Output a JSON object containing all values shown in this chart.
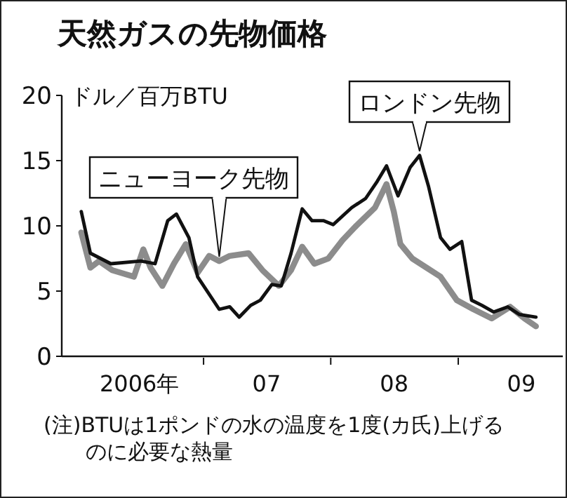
{
  "chart_data": {
    "type": "line",
    "title": "天然ガスの先物価格",
    "ylabel": "ドル／百万BTU",
    "annotations": [
      "(注)BTUは1ポンドの水の温度を1度(カ氏)上げるのに必要な熱量"
    ],
    "xlim": [
      "2005-11-20",
      "2009-10-28"
    ],
    "xticks": [
      {
        "value": "2006-07-01",
        "label": "2006年"
      },
      {
        "value": "2007-01-01",
        "label": null
      },
      {
        "value": "2007-07-01",
        "label": "07"
      },
      {
        "value": "2008-01-01",
        "label": null
      },
      {
        "value": "2008-07-01",
        "label": "08"
      },
      {
        "value": "2009-01-01",
        "label": null
      },
      {
        "value": "2009-07-01",
        "label": "09"
      }
    ],
    "ylim": [
      0,
      20
    ],
    "yticks": [
      0,
      5,
      10,
      15,
      20
    ],
    "grid": false,
    "marker": "none",
    "line_style": "solid",
    "series": [
      {
        "name": "ニューヨーク先物",
        "color": "#8c8c8c",
        "x": [
          "2006-01-15",
          "2006-02-10",
          "2006-03-07",
          "2006-04-14",
          "2006-06-15",
          "2006-07-12",
          "2006-08-02",
          "2006-09-05",
          "2006-10-08",
          "2006-11-11",
          "2006-12-15",
          "2007-01-17",
          "2007-02-15",
          "2007-03-17",
          "2007-05-10",
          "2007-06-19",
          "2007-08-05",
          "2007-09-09",
          "2007-10-11",
          "2007-11-15",
          "2007-12-25",
          "2008-02-04",
          "2008-03-14",
          "2008-05-07",
          "2008-06-09",
          "2008-06-30",
          "2008-07-19",
          "2008-08-22",
          "2008-10-02",
          "2008-11-11",
          "2008-12-28",
          "2009-02-14",
          "2009-04-07",
          "2009-05-30",
          "2009-07-10",
          "2009-08-12"
        ],
        "values": [
          9.5,
          6.8,
          7.3,
          6.6,
          6.1,
          8.2,
          6.8,
          5.4,
          7.1,
          8.6,
          6.4,
          7.7,
          7.3,
          7.7,
          7.9,
          6.6,
          5.4,
          6.6,
          8.4,
          7.1,
          7.5,
          8.9,
          10.0,
          11.4,
          13.2,
          11.1,
          8.6,
          7.5,
          6.8,
          6.1,
          4.3,
          3.6,
          2.9,
          3.8,
          2.9,
          2.3
        ]
      },
      {
        "name": "ロンドン先物",
        "color": "#111111",
        "x": [
          "2006-01-15",
          "2006-02-10",
          "2006-04-10",
          "2006-07-05",
          "2006-08-15",
          "2006-09-20",
          "2006-10-15",
          "2006-11-20",
          "2006-12-15",
          "2007-02-15",
          "2007-03-17",
          "2007-04-13",
          "2007-05-16",
          "2007-06-13",
          "2007-07-16",
          "2007-08-12",
          "2007-09-09",
          "2007-10-11",
          "2007-11-08",
          "2007-12-11",
          "2008-01-08",
          "2008-03-01",
          "2008-04-10",
          "2008-05-13",
          "2008-06-09",
          "2008-07-12",
          "2008-08-16",
          "2008-09-12",
          "2008-10-08",
          "2008-11-11",
          "2008-12-08",
          "2009-01-11",
          "2009-02-08",
          "2009-03-10",
          "2009-04-13",
          "2009-05-23",
          "2009-06-26",
          "2009-08-12"
        ],
        "values": [
          11.1,
          7.9,
          7.1,
          7.3,
          7.1,
          10.4,
          10.9,
          9.1,
          6.1,
          3.6,
          3.8,
          3.0,
          3.9,
          4.3,
          5.5,
          5.4,
          7.9,
          11.3,
          10.4,
          10.4,
          10.1,
          11.4,
          12.1,
          13.4,
          14.6,
          12.3,
          14.5,
          15.4,
          13.0,
          9.1,
          8.2,
          8.8,
          4.3,
          3.9,
          3.4,
          3.8,
          3.2,
          3.0
        ]
      }
    ]
  }
}
